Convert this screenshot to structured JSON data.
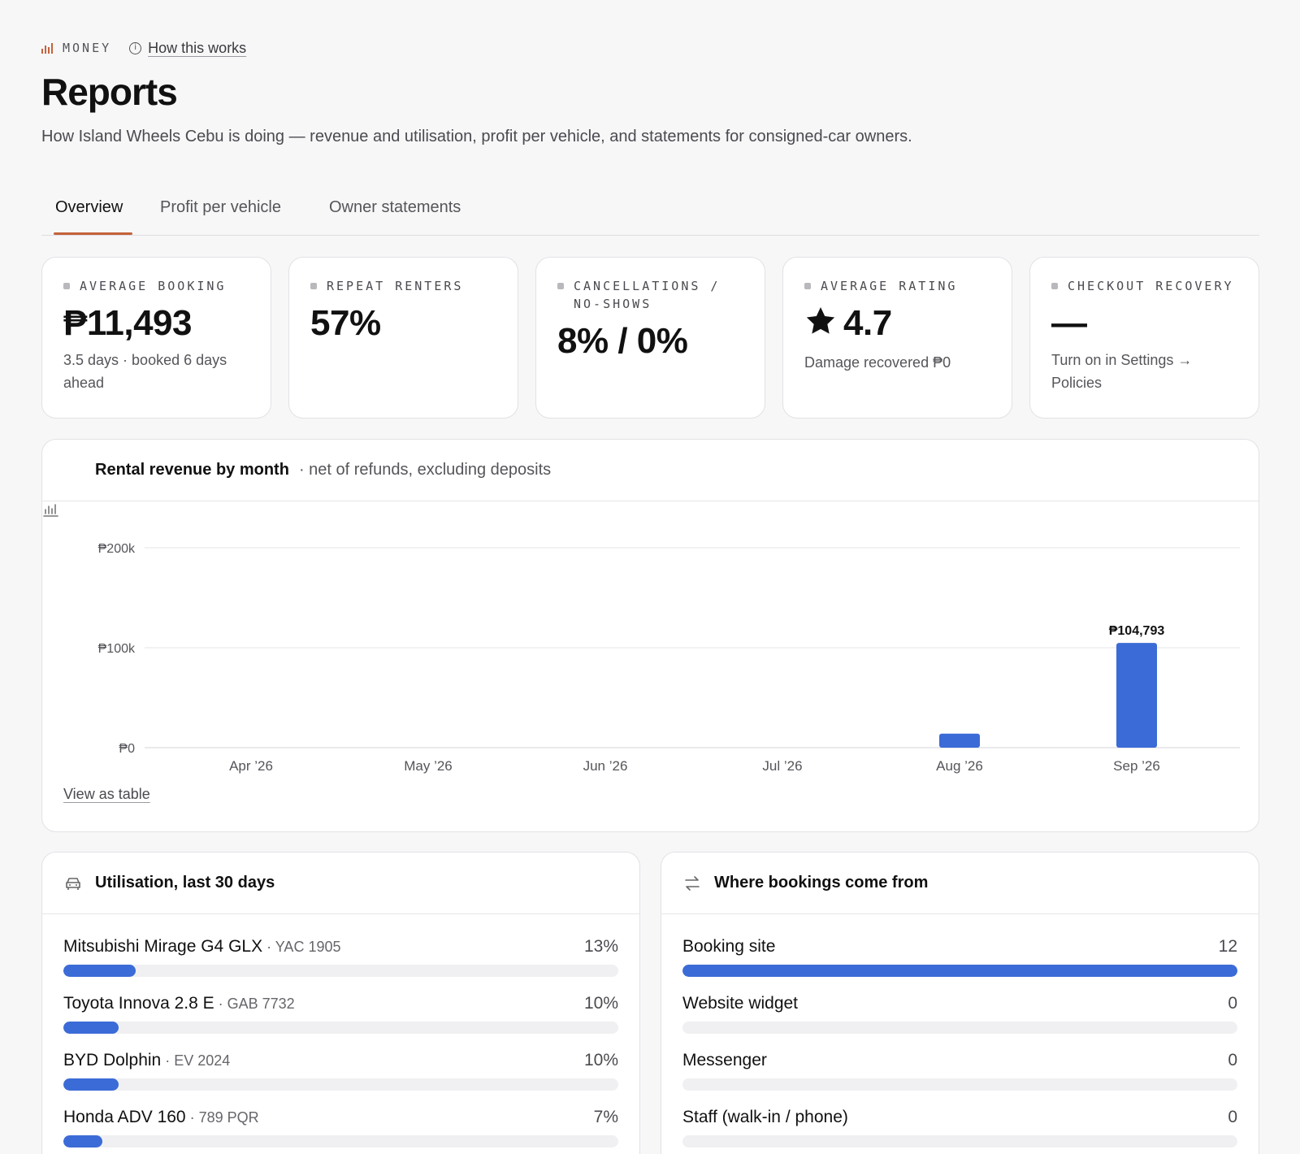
{
  "header": {
    "eyebrow": "MONEY",
    "help_link": "How this works",
    "title": "Reports",
    "subtitle": "How Island Wheels Cebu is doing — revenue and utilisation, profit per vehicle, and statements for consigned-car owners."
  },
  "tabs": [
    {
      "label": "Overview",
      "active": true
    },
    {
      "label": "Profit per vehicle",
      "active": false
    },
    {
      "label": "Owner statements",
      "active": false
    }
  ],
  "stats": [
    {
      "label": "AVERAGE BOOKING",
      "value": "₱11,493",
      "note": "3.5 days · booked 6 days ahead"
    },
    {
      "label": "REPEAT RENTERS",
      "value": "57%",
      "note": ""
    },
    {
      "label": "CANCELLATIONS / NO-SHOWS",
      "value": "8% / 0%",
      "note": ""
    },
    {
      "label": "AVERAGE RATING",
      "value": "4.7",
      "note": "Damage recovered ₱0",
      "icon": "star-icon"
    },
    {
      "label": "CHECKOUT RECOVERY",
      "value": "—",
      "note": "Turn on in Settings → Policies"
    }
  ],
  "revenue": {
    "title": "Rental revenue by month",
    "subtitle": "· net of refunds, excluding deposits",
    "view_table": "View as table"
  },
  "chart_data": {
    "type": "bar",
    "categories": [
      "Apr ’26",
      "May ’26",
      "Jun ’26",
      "Jul ’26",
      "Aug ’26",
      "Sep ’26"
    ],
    "values": [
      0,
      0,
      0,
      0,
      14000,
      104793
    ],
    "value_labels": [
      "",
      "",
      "",
      "",
      "",
      "₱104,793"
    ],
    "yticks": [
      0,
      100000,
      200000
    ],
    "ytick_labels": [
      "₱0",
      "₱100k",
      "₱200k"
    ],
    "ylim": [
      0,
      200000
    ],
    "color": "#3b6bd6",
    "grid": true
  },
  "utilisation": {
    "title": "Utilisation, last 30 days",
    "rows": [
      {
        "name": "Mitsubishi Mirage G4 GLX",
        "sub": " · YAC 1905",
        "pct_label": "13%",
        "pct": 13
      },
      {
        "name": "Toyota Innova 2.8 E",
        "sub": " · GAB 7732",
        "pct_label": "10%",
        "pct": 10
      },
      {
        "name": "BYD Dolphin",
        "sub": " · EV 2024",
        "pct_label": "10%",
        "pct": 10
      },
      {
        "name": "Honda ADV 160",
        "sub": " · 789 PQR",
        "pct_label": "7%",
        "pct": 7
      }
    ]
  },
  "sources": {
    "title": "Where bookings come from",
    "rows": [
      {
        "name": "Booking site",
        "count_label": "12",
        "share": 100
      },
      {
        "name": "Website widget",
        "count_label": "0",
        "share": 0
      },
      {
        "name": "Messenger",
        "count_label": "0",
        "share": 0
      },
      {
        "name": "Staff (walk-in / phone)",
        "count_label": "0",
        "share": 0
      }
    ]
  }
}
